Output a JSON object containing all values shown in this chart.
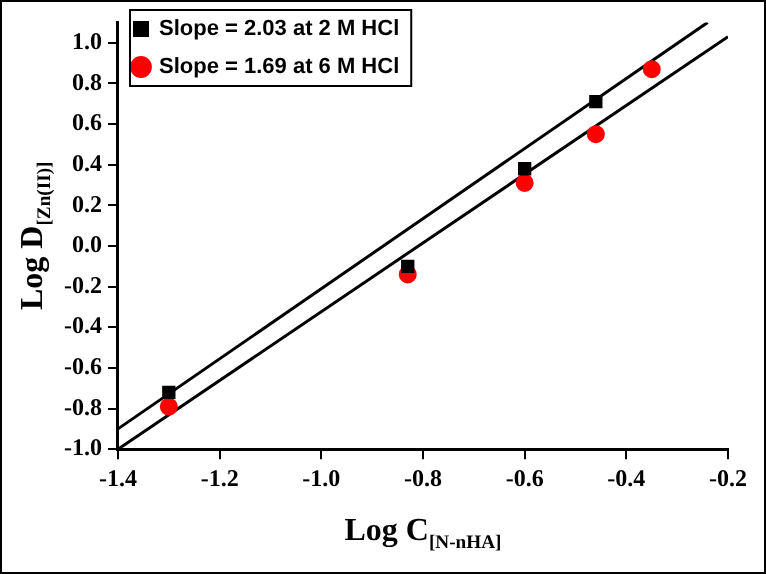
{
  "chart_data": {
    "type": "scatter",
    "xlabel": "Log C$_{[N-nHA]}$",
    "ylabel": "Log D$_{[Zn(II)]}$",
    "x": [
      -1.3,
      -0.83,
      -0.6,
      -0.46
    ],
    "series": [
      {
        "name": "Slope = 2.03 at 2 M HCl",
        "color": "#000000",
        "marker": "square",
        "values": [
          -0.72,
          -0.1,
          0.38,
          0.71
        ]
      },
      {
        "name": "Slope = 1.69 at 6 M HCl",
        "color": "#ff0000",
        "marker": "circle",
        "x": [
          -1.3,
          -0.83,
          -0.6,
          -0.46,
          -0.35
        ],
        "values": [
          -0.79,
          -0.14,
          0.31,
          0.55,
          0.87
        ]
      },
      {
        "type": "line",
        "color": "#000000",
        "marker": "none",
        "x": [
          -1.4,
          -0.24
        ],
        "values": [
          -0.9,
          1.1
        ]
      },
      {
        "type": "line",
        "color": "#000000",
        "marker": "none",
        "x": [
          -1.4,
          -0.2
        ],
        "values": [
          -1.0,
          1.03
        ]
      }
    ],
    "xlim": [
      -1.4,
      -0.2
    ],
    "xticks": [
      -1.4,
      -1.2,
      {
        "value": -1.0,
        "label": "-1.0"
      },
      -0.8,
      -0.6,
      -0.4,
      -0.2
    ],
    "ylim": [
      -1.0,
      1.1
    ],
    "yticks": [
      {
        "value": -1.0,
        "label": "-1.0"
      },
      -0.8,
      -0.6,
      -0.4,
      -0.2,
      {
        "value": 0,
        "label": "0.0"
      },
      0.2,
      0.4,
      0.6,
      0.8,
      {
        "value": 1.0,
        "label": "1.0"
      }
    ],
    "grid": false,
    "legend": "top left"
  }
}
